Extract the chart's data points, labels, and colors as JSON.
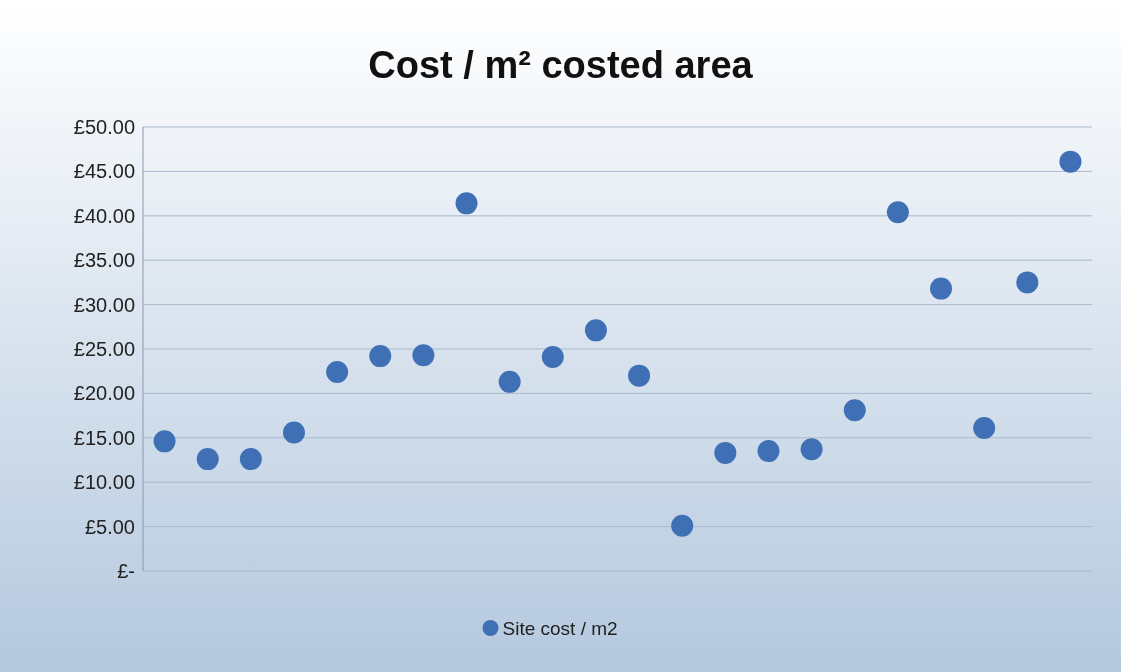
{
  "chart_data": {
    "type": "scatter",
    "title": "Cost / m² costed area",
    "categories": [
      null,
      null,
      null,
      null,
      null,
      null,
      null,
      null,
      null,
      null,
      null,
      null,
      null,
      null,
      null,
      null,
      null,
      null,
      null,
      null,
      null,
      null
    ],
    "series": [
      {
        "name": "Site cost / m2",
        "color": "#3f6fb5",
        "values": [
          14.6,
          12.6,
          12.6,
          15.6,
          22.4,
          24.2,
          24.3,
          41.4,
          21.3,
          24.1,
          27.1,
          22.0,
          5.1,
          13.3,
          13.5,
          13.7,
          18.1,
          40.4,
          31.8,
          16.1,
          32.5,
          46.1
        ]
      }
    ],
    "ylim": [
      0,
      50
    ],
    "yticks": [
      {
        "value": 0,
        "label": "£-"
      },
      {
        "value": 5,
        "label": "£5.00"
      },
      {
        "value": 10,
        "label": "£10.00"
      },
      {
        "value": 15,
        "label": "£15.00"
      },
      {
        "value": 20,
        "label": "£20.00"
      },
      {
        "value": 25,
        "label": "£25.00"
      },
      {
        "value": 30,
        "label": "£30.00"
      },
      {
        "value": 35,
        "label": "£35.00"
      },
      {
        "value": 40,
        "label": "£40.00"
      },
      {
        "value": 45,
        "label": "£45.00"
      },
      {
        "value": 50,
        "label": "£50.00"
      }
    ],
    "tick_labels": "y",
    "grid": "y",
    "legend": "bottom",
    "marker": "circle"
  }
}
